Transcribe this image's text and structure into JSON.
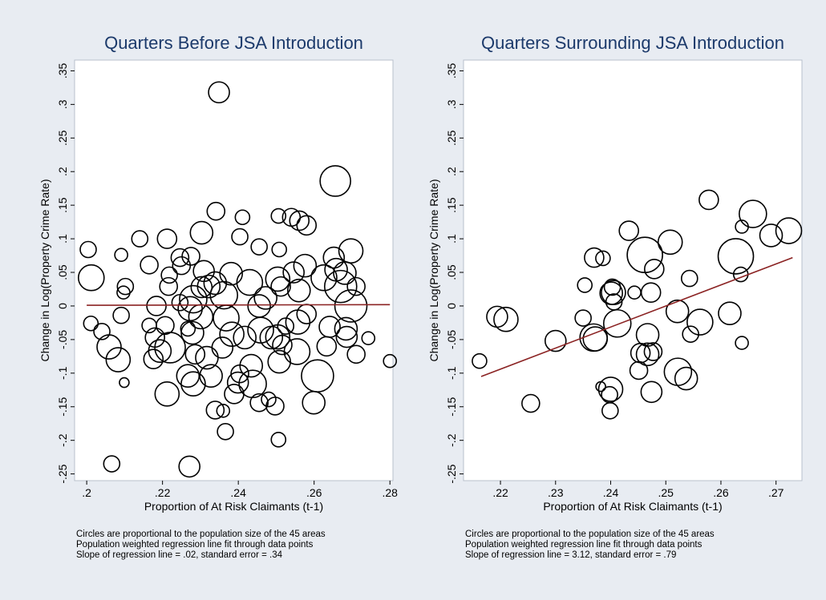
{
  "chart_data": [
    {
      "type": "scatter",
      "title": "Quarters Before JSA Introduction",
      "xlabel": "Proportion of At Risk Claimants (t-1)",
      "ylabel": "Change in Log(Property Crime Rate)",
      "notes": [
        "Circles are proportional to the population size of the 45 areas",
        "Population weighted regression line fit through data points",
        "Slope of regression line = .02, standard error = .34"
      ],
      "color": "#000000",
      "x": [
        0.2349,
        0.2656,
        0.2004,
        0.2012,
        0.2091,
        0.214,
        0.2212,
        0.2102,
        0.2165,
        0.2303,
        0.2341,
        0.2411,
        0.2404,
        0.2506,
        0.254,
        0.2561,
        0.258,
        0.2455,
        0.2508,
        0.2652,
        0.2697,
        0.2681,
        0.267,
        0.2697,
        0.2684,
        0.2686,
        0.2743,
        0.28,
        0.2641,
        0.2633,
        0.2609,
        0.2599,
        0.2506,
        0.2557,
        0.2546,
        0.2504,
        0.2512,
        0.2472,
        0.243,
        0.2455,
        0.2417,
        0.2459,
        0.2487,
        0.2504,
        0.2516,
        0.2508,
        0.2555,
        0.2434,
        0.2438,
        0.2455,
        0.2497,
        0.248,
        0.2404,
        0.2389,
        0.2399,
        0.2366,
        0.236,
        0.2339,
        0.2328,
        0.2317,
        0.2273,
        0.2303,
        0.2281,
        0.2301,
        0.2322,
        0.2339,
        0.2362,
        0.2381,
        0.2368,
        0.2383,
        0.2358,
        0.2279,
        0.2286,
        0.2267,
        0.2246,
        0.2207,
        0.222,
        0.2193,
        0.218,
        0.2184,
        0.2216,
        0.225,
        0.2246,
        0.2275,
        0.2309,
        0.2218,
        0.2176,
        0.2212,
        0.2267,
        0.2281,
        0.2271,
        0.2066,
        0.2099,
        0.2083,
        0.2059,
        0.204,
        0.2011,
        0.2091,
        0.2097,
        0.2165,
        0.2711,
        0.2711,
        0.2658,
        0.2626,
        0.256,
        0.2576,
        0.2525,
        0.258
      ],
      "values": [
        0.318,
        0.186,
        0.084,
        0.042,
        0.076,
        0.1,
        0.1,
        0.029,
        0.061,
        0.109,
        0.141,
        0.132,
        0.103,
        0.134,
        0.132,
        0.127,
        0.12,
        0.088,
        0.084,
        0.072,
        0.082,
        0.049,
        0.029,
        0,
        -0.034,
        -0.046,
        -0.048,
        -0.082,
        -0.031,
        -0.06,
        -0.104,
        -0.144,
        -0.199,
        -0.024,
        0.05,
        0.04,
        0.029,
        0.012,
        0.035,
        0,
        -0.047,
        -0.036,
        -0.047,
        -0.046,
        -0.058,
        -0.083,
        -0.068,
        -0.089,
        -0.116,
        -0.144,
        -0.149,
        -0.139,
        -0.101,
        -0.131,
        -0.114,
        -0.187,
        -0.156,
        -0.155,
        -0.104,
        -0.077,
        -0.004,
        0.028,
        0.01,
        -0.016,
        0.029,
        0.034,
        0.016,
        0.048,
        -0.018,
        -0.042,
        -0.062,
        -0.04,
        -0.072,
        -0.034,
        0.005,
        -0.029,
        -0.062,
        -0.067,
        -0.047,
        0,
        0.029,
        0.06,
        0.072,
        0.074,
        0.052,
        0.046,
        -0.079,
        -0.131,
        -0.104,
        -0.116,
        -0.239,
        -0.235,
        -0.114,
        -0.08,
        -0.061,
        -0.038,
        -0.026,
        -0.014,
        0.02,
        -0.029,
        0.029,
        -0.072,
        0.054,
        0.042,
        0.023,
        0.06,
        -0.03,
        -0.012
      ],
      "sizes": [
        13,
        19,
        10,
        16,
        8,
        10,
        12,
        10,
        11,
        14,
        11,
        9,
        10,
        9,
        11,
        12,
        12,
        10,
        9,
        13,
        15,
        14,
        20,
        20,
        14,
        13,
        8,
        8,
        13,
        12,
        20,
        14,
        9,
        15,
        13,
        15,
        12,
        14,
        16,
        14,
        14,
        16,
        14,
        15,
        12,
        14,
        16,
        14,
        17,
        11,
        11,
        9,
        11,
        12,
        13,
        10,
        8,
        11,
        14,
        14,
        15,
        13,
        17,
        15,
        14,
        14,
        17,
        14,
        16,
        15,
        13,
        14,
        12,
        9,
        10,
        11,
        19,
        14,
        12,
        12,
        11,
        11,
        11,
        11,
        13,
        10,
        12,
        15,
        14,
        15,
        13,
        10,
        6,
        15,
        15,
        10,
        9,
        10,
        8,
        9,
        11,
        11,
        14,
        16,
        14,
        14,
        10,
        12
      ],
      "fit_line": {
        "x": [
          0.2,
          0.28
        ],
        "values": [
          0.001,
          0.002
        ],
        "color": "#8b2323"
      },
      "xlim": [
        0.1968,
        0.2808
      ],
      "ylim": [
        -0.26,
        0.366
      ],
      "xticks": [
        {
          "value": 0.2,
          "label": ".2"
        },
        {
          "value": 0.22,
          "label": ".22"
        },
        {
          "value": 0.24,
          "label": ".24"
        },
        {
          "value": 0.26,
          "label": ".26"
        },
        {
          "value": 0.28,
          "label": ".28"
        }
      ],
      "yticks": [
        {
          "value": -0.25,
          "label": "-.25"
        },
        {
          "value": -0.2,
          "label": "-.2"
        },
        {
          "value": -0.15,
          "label": "-.15"
        },
        {
          "value": -0.1,
          "label": "-.1"
        },
        {
          "value": -0.05,
          "label": "-.05"
        },
        0,
        {
          "value": 0.05,
          "label": ".05"
        },
        {
          "value": 0.1,
          "label": ".1"
        },
        {
          "value": 0.15,
          "label": ".15"
        },
        {
          "value": 0.2,
          "label": ".2"
        },
        {
          "value": 0.25,
          "label": ".25"
        },
        {
          "value": 0.3,
          "label": ".3"
        },
        {
          "value": 0.35,
          "label": ".35"
        }
      ]
    },
    {
      "type": "scatter",
      "title": "Quarters Surrounding JSA Introduction",
      "xlabel": "Proportion of At Risk Claimants (t-1)",
      "ylabel": "Change in Log(Property Crime Rate)",
      "notes": [
        "Circles are proportional to the population size of the 45 areas",
        "Population weighted regression line fit through data points",
        "Slope of regression line = 3.12, standard error = .79"
      ],
      "color": "#000000",
      "x": [
        0.2162,
        0.2194,
        0.221,
        0.2255,
        0.23,
        0.235,
        0.2353,
        0.237,
        0.2386,
        0.2369,
        0.2372,
        0.2382,
        0.24,
        0.2399,
        0.2401,
        0.2403,
        0.2405,
        0.2406,
        0.2412,
        0.2398,
        0.2433,
        0.2443,
        0.2454,
        0.2451,
        0.2467,
        0.2467,
        0.2473,
        0.2479,
        0.2462,
        0.2474,
        0.2477,
        0.2508,
        0.2521,
        0.2522,
        0.2537,
        0.2543,
        0.2545,
        0.2562,
        0.2578,
        0.2616,
        0.2627,
        0.2636,
        0.2638,
        0.2638,
        0.2658,
        0.2691,
        0.2723
      ],
      "values": [
        -0.082,
        -0.016,
        -0.02,
        -0.145,
        -0.052,
        -0.018,
        0.031,
        0.072,
        0.071,
        -0.047,
        -0.049,
        -0.12,
        -0.124,
        -0.156,
        0.019,
        0.028,
        0.02,
        0.006,
        -0.026,
        -0.132,
        0.112,
        0.02,
        -0.07,
        -0.096,
        -0.043,
        -0.072,
        0.02,
        0.055,
        0.076,
        -0.128,
        -0.068,
        0.095,
        -0.008,
        -0.098,
        -0.108,
        0.041,
        -0.042,
        -0.024,
        0.158,
        -0.011,
        0.074,
        0.047,
        -0.055,
        0.118,
        0.137,
        0.105,
        0.112
      ],
      "sizes": [
        9,
        13,
        15,
        11,
        13,
        10,
        9,
        12,
        9,
        17,
        15,
        6,
        15,
        10,
        14,
        10,
        15,
        10,
        17,
        10,
        12,
        8,
        12,
        11,
        14,
        14,
        12,
        12,
        22,
        13,
        11,
        15,
        14,
        17,
        14,
        10,
        10,
        16,
        12,
        14,
        22,
        9,
        8,
        8,
        17,
        14,
        16
      ],
      "fit_line": {
        "x": [
          0.2165,
          0.273
        ],
        "values": [
          -0.105,
          0.072
        ],
        "color": "#8b2323"
      },
      "xlim": [
        0.2133,
        0.2747
      ],
      "ylim": [
        -0.26,
        0.366
      ],
      "xticks": [
        {
          "value": 0.22,
          "label": ".22"
        },
        {
          "value": 0.23,
          "label": ".23"
        },
        {
          "value": 0.24,
          "label": ".24"
        },
        {
          "value": 0.25,
          "label": ".25"
        },
        {
          "value": 0.26,
          "label": ".26"
        },
        {
          "value": 0.27,
          "label": ".27"
        }
      ],
      "yticks": [
        {
          "value": -0.25,
          "label": "-.25"
        },
        {
          "value": -0.2,
          "label": "-.2"
        },
        {
          "value": -0.15,
          "label": "-.15"
        },
        {
          "value": -0.1,
          "label": "-.1"
        },
        {
          "value": -0.05,
          "label": "-.05"
        },
        0,
        {
          "value": 0.05,
          "label": ".05"
        },
        {
          "value": 0.1,
          "label": ".1"
        },
        {
          "value": 0.15,
          "label": ".15"
        },
        {
          "value": 0.2,
          "label": ".2"
        },
        {
          "value": 0.25,
          "label": ".25"
        },
        {
          "value": 0.3,
          "label": ".3"
        },
        {
          "value": 0.35,
          "label": ".35"
        }
      ]
    }
  ]
}
